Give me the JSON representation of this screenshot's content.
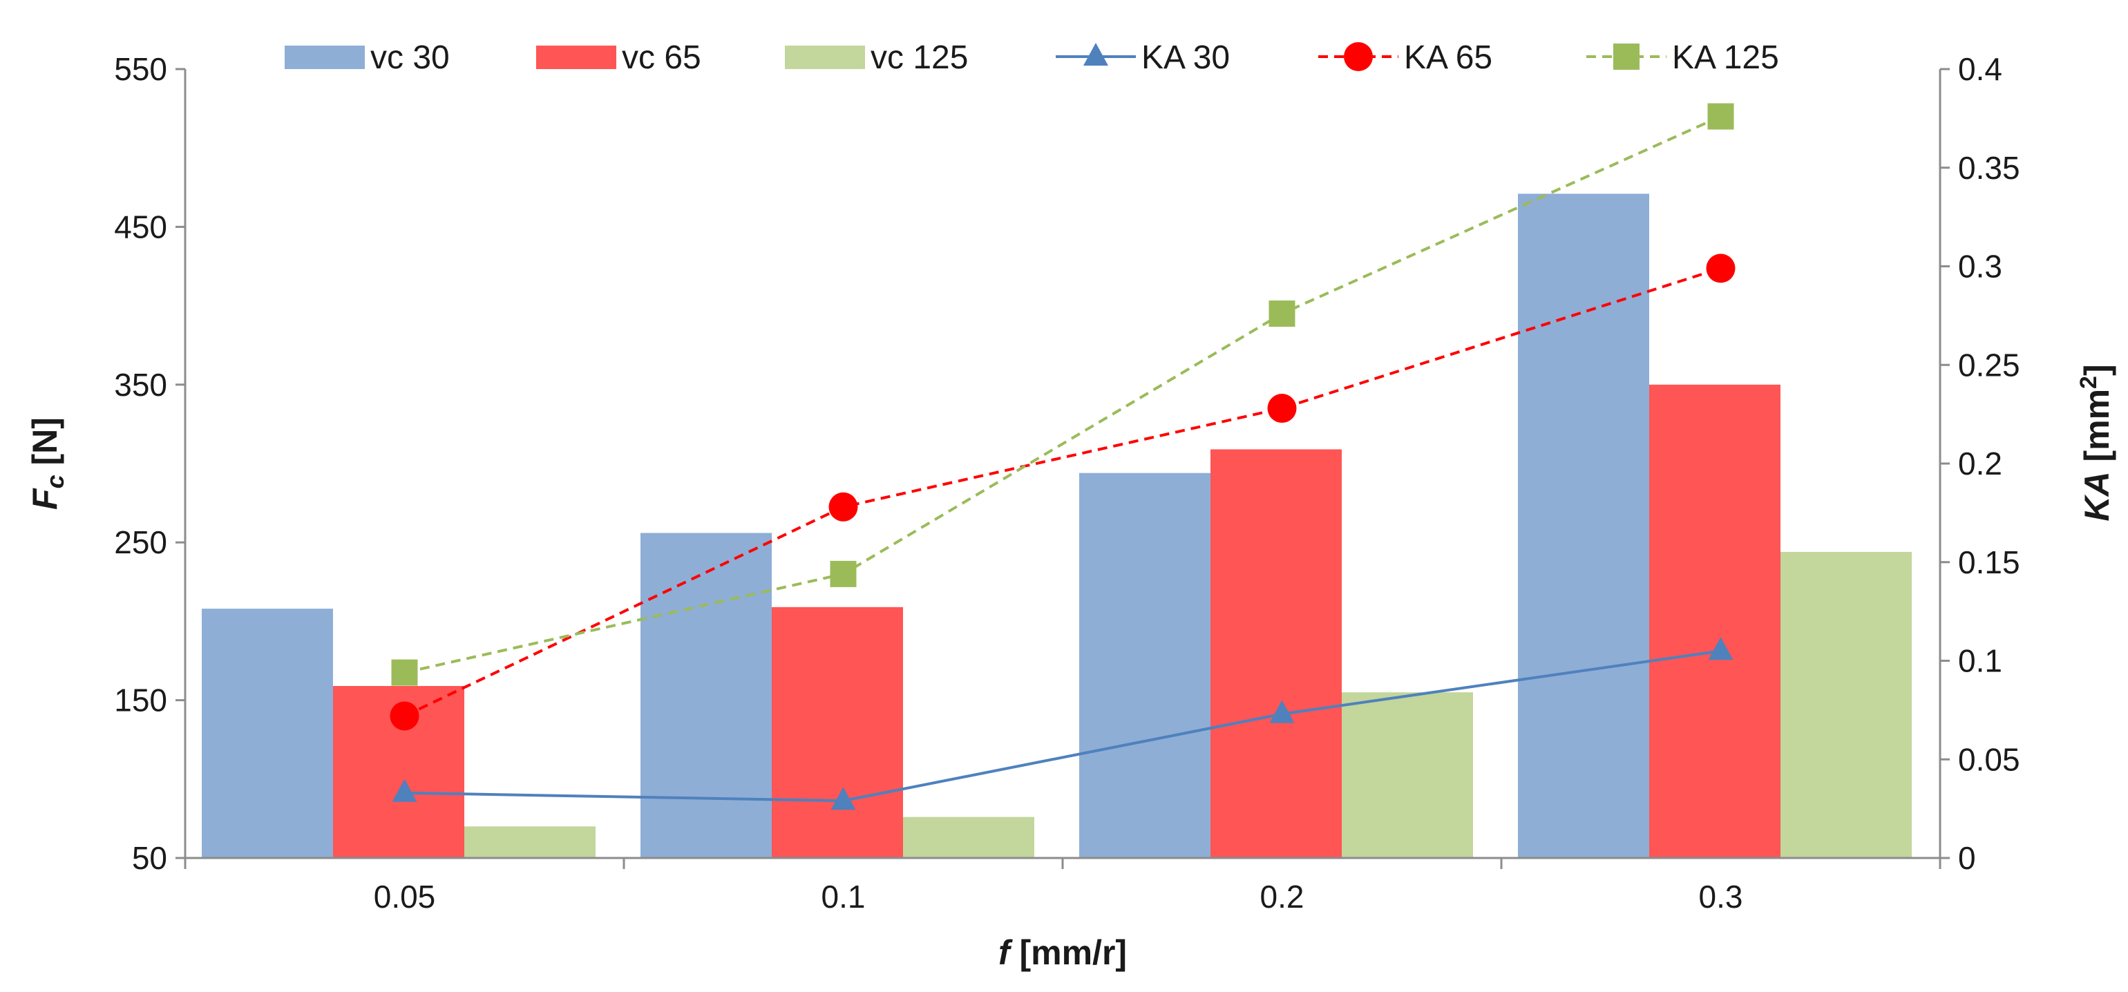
{
  "chart_data": {
    "type": "bar",
    "categories": [
      "0.05",
      "0.1",
      "0.2",
      "0.3"
    ],
    "series": [
      {
        "name": "vc 30",
        "kind": "bar",
        "axis": "left",
        "color": "#8eaed6",
        "values": [
          208,
          256,
          294,
          471
        ]
      },
      {
        "name": "vc 65",
        "kind": "bar",
        "axis": "left",
        "color": "#ff5555",
        "values": [
          159,
          209,
          309,
          350
        ]
      },
      {
        "name": "vc 125",
        "kind": "bar",
        "axis": "left",
        "color": "#c3d69b",
        "values": [
          70,
          76,
          155,
          244
        ]
      },
      {
        "name": "KA 30",
        "kind": "line",
        "axis": "right",
        "color": "#4f81bd",
        "dash": "solid",
        "marker": "triangle",
        "values": [
          0.033,
          0.029,
          0.073,
          0.105
        ]
      },
      {
        "name": "KA 65",
        "kind": "line",
        "axis": "right",
        "color": "#ff0000",
        "dash": "dashed",
        "marker": "circle",
        "values": [
          0.072,
          0.178,
          0.228,
          0.299
        ]
      },
      {
        "name": "KA 125",
        "kind": "line",
        "axis": "right",
        "color": "#9bbb59",
        "dash": "dashed",
        "marker": "square",
        "values": [
          0.094,
          0.144,
          0.276,
          0.376
        ]
      }
    ],
    "xlabel": {
      "main": "f",
      "rest": " [mm/r]"
    },
    "ylabel": {
      "main": "F",
      "sub": "c",
      "rest": " [N]"
    },
    "y2label": {
      "main": "KA",
      "rest": " [mm",
      "sup": "2",
      "close": "]"
    },
    "ylim": [
      50,
      550
    ],
    "yticks": [
      "50",
      "150",
      "250",
      "350",
      "450",
      "550"
    ],
    "y2lim": [
      0,
      0.4
    ],
    "y2ticks": [
      "0",
      "0.05",
      "0.1",
      "0.15",
      "0.2",
      "0.25",
      "0.3",
      "0.35",
      "0.4"
    ],
    "grid": false,
    "legend_position": "top"
  }
}
